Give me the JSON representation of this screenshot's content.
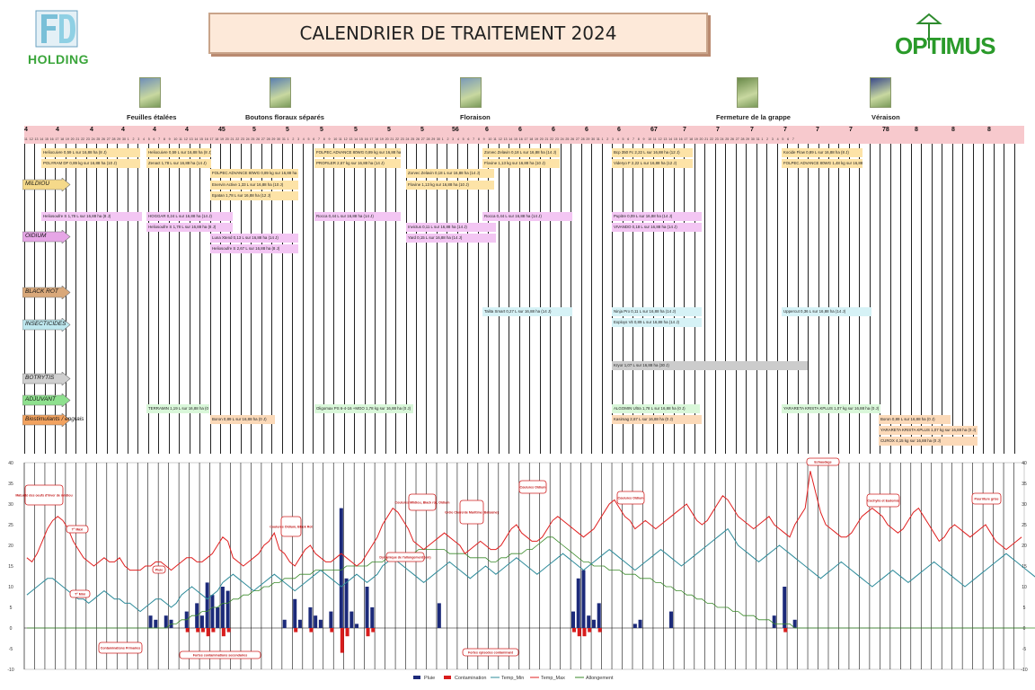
{
  "header": {
    "logo_left_text": "HOLDING",
    "title": "CALENDRIER DE TRAITEMENT 2024",
    "logo_right_text": "OPTIMUS"
  },
  "stages": [
    {
      "label": "Feuilles étalées"
    },
    {
      "label": "Boutons floraux séparés"
    },
    {
      "label": "Floraison"
    },
    {
      "label": "Fermeture de la grappe"
    },
    {
      "label": "Véraison"
    }
  ],
  "month_labels": [
    "4",
    "4",
    "4",
    "4",
    "4",
    "4",
    "45",
    "5",
    "5",
    "5",
    "5",
    "5",
    "5",
    "56",
    "6",
    "6",
    "6",
    "6",
    "6",
    "67",
    "7",
    "7",
    "7",
    "7",
    "7",
    "7",
    "78",
    "8",
    "8",
    "8",
    "8",
    "8",
    "89",
    "9"
  ],
  "day_labels": [
    "11",
    "12",
    "13",
    "14",
    "15",
    "16",
    "17",
    "18",
    "19",
    "20",
    "21",
    "22",
    "23",
    "24",
    "25",
    "26",
    "27",
    "28",
    "29",
    "30",
    "1",
    "2",
    "3",
    "4",
    "5",
    "6",
    "7",
    "8",
    "9",
    "10",
    "11",
    "12",
    "13",
    "14",
    "15",
    "16",
    "17",
    "18",
    "19",
    "20",
    "21",
    "22",
    "23",
    "24",
    "25",
    "26",
    "27",
    "28",
    "29",
    "30",
    "31",
    "1",
    "2",
    "3",
    "4",
    "5",
    "6",
    "7",
    "8",
    "9",
    "10",
    "11",
    "12",
    "13",
    "14",
    "15",
    "16",
    "17",
    "18",
    "19",
    "20",
    "21",
    "22",
    "23",
    "24",
    "25",
    "26",
    "27",
    "28",
    "29",
    "30",
    "1",
    "2",
    "3",
    "4",
    "5",
    "6",
    "7",
    "8",
    "9",
    "10",
    "11",
    "12",
    "13",
    "14",
    "15",
    "16",
    "17",
    "18",
    "19",
    "20",
    "21",
    "22",
    "23",
    "24",
    "25",
    "26",
    "27",
    "28",
    "29",
    "30",
    "31",
    "1",
    "2",
    "3",
    "4",
    "5",
    "6",
    "7",
    "8",
    "9",
    "10",
    "11",
    "12",
    "13",
    "14",
    "15",
    "16",
    "17",
    "18",
    "19",
    "20",
    "21",
    "22",
    "23",
    "24",
    "25",
    "26",
    "27",
    "28",
    "29",
    "30",
    "31",
    "1",
    "2",
    "3",
    "4",
    "5",
    "6",
    "7"
  ],
  "categories": [
    {
      "name": "MILDIOU",
      "color": "#f5d98a"
    },
    {
      "name": "OIDIUM",
      "color": "#e6a6e6"
    },
    {
      "name": "BLACK ROT",
      "color": "#d9a87a"
    },
    {
      "name": "INSECTICIDES",
      "color": "#bfe8ef"
    },
    {
      "name": "BOTRYTIS",
      "color": "#cfcfcf"
    },
    {
      "name": "ADJUVANT",
      "color": "#8ee08e"
    },
    {
      "name": "Biostimulants / engrais",
      "color": "#f2a25f"
    }
  ],
  "treatments": {
    "mildiou": [
      "Heliocuivre 0,59 L sur 16,88 ha (8 J)",
      "POLYRAM DF 0,89 kg sur 16,88 ha (10 J)",
      "Heliocuivre 0,59 L sur 16,88 ha (8 J)",
      "Zenact 1,78 L sur 16,88 ha (14 J)",
      "FOLPEC ADVANCE 80WG 0,89 kg sur 16,88 ha (10 J)",
      "Enervin Active 1,33 L sur 16,88 ha (10 J)",
      "Epatan 1,78 L sur 16,88 ha (12 J)",
      "FOLPEC ADVANCE 80WG 0,89 kg sur 16,88 ha (10 J)",
      "PROFILER 2,67 kg sur 16,88 ha (14 J)",
      "Zorvec Zelavin 0,18 L sur 16,88 ha (14 J)",
      "Flovine 1,13 kg sur 16,88 ha (10 J)",
      "Zorvec Zelavin 0,18 L sur 16,88 ha (14 J)",
      "Flovine 1,13 kg sur 16,88 ha (10 J)",
      "Bcp 350 Fc 2,22 L sur 16,88 ha (12 J)",
      "Videryo F 2,22 L sur 16,88 ha (12 J)",
      "Kocide Flow 0,89 L sur 16,88 ha (8 J)",
      "FOLPEC ADVANCE 80WG 1,48 kg sur 16,88 ha (10 J)"
    ],
    "oidium": [
      "Heliosoufre S 1,78 L sur 16,88 ha (8 J)",
      "HOGGAR 0,24 L sur 16,88 ha (14 J)",
      "Heliosoufre S 1,78 L sur 16,88 ha (8 J)",
      "Luna Xtend 0,13 L sur 16,88 ha (14 J)",
      "Heliosoufre S 2,67 L sur 16,88 ha (8 J)",
      "Rocca 0,44 L sur 16,88 ha (14 J)",
      "Invictus 0,11 L sur 16,88 ha (14 J)",
      "Yard 0,15 L sur 16,88 ha (14 J)",
      "Rocca 0,44 L sur 16,88 ha (14 J)",
      "Pupitre 0,09 L sur 16,88 ha (14 J)",
      "VIVANDO 0,18 L sur 16,88 ha (14 J)"
    ],
    "insecticides": [
      "Talita Smart 0,27 L sur 16,88 ha (14 J)",
      "Ninja Pro 0,11 L sur 16,88 ha (14 J)",
      "Exploys Vit 0,89 L sur 16,88 ha (14 J)",
      "Uppercut 0,36 L sur 16,88 ha (14 J)"
    ],
    "botrytis": [
      "Kryor 1,07 L sur 16,88 ha (30 J)"
    ],
    "adjuvant": [
      "TERRAMIN 1,19 L sur 16,88 ha (0 J)",
      "Oligomax PS 6-4-16 +MGO 1,78 kg sur 16,88 ha (0 J)",
      "ALGOMIN Ultra 1,78 L sur 16,88 ha (0 J)",
      "YARARETA KRISTA KPLUS 1,07 kg sur 16,88 ha (0 J)"
    ],
    "bio": [
      "Boron 0,89 L sur 16,88 ha (0 J)",
      "Kasimag 2,67 L sur 16,88 ha (0 J)",
      "Boron 0,89 L sur 16,88 ha (0 J)",
      "YARARETA KRISTA KPLUS 1,07 kg sur 16,88 ha (0 J)",
      "CUROX 4,15 kg sur 16,88 ha (0 J)"
    ]
  },
  "annotations": [
    "Maturité des oeufs d'hiver de mildiou",
    "T° Maxi",
    "T° Mini",
    "Pluie",
    "Contaminations Primaires",
    "Fortes contaminations secondaires",
    "Coulures Oïdium, Black Rot",
    "Dynamique de l'allongement (cm)",
    "Coulures Mildiou, Black rot, Oïdium",
    "Grêle Charente Maritime (Balsaine)",
    "Fortes épisodes contaminant",
    "Coulures Oïdium",
    "Coulures Oïdium",
    "Echaudage",
    "Cochylis et Eudemis",
    "Pourriture grise"
  ],
  "chart_data": {
    "type": "line",
    "ylim": [
      -10,
      40
    ],
    "yticks": [
      "40",
      "35",
      "30",
      "25",
      "20",
      "15",
      "10",
      "5",
      "0",
      "-5",
      "-10"
    ],
    "legend": [
      "Pluie",
      "Contamination",
      "Temp_Min",
      "Temp_Max",
      "Allongement"
    ],
    "legend_position": "bottom",
    "colors": {
      "Pluie": "#1c2a7a",
      "Contamination": "#d81c1c",
      "Temp_Min": "#2e8b9a",
      "Temp_Max": "#e02020",
      "Allongement": "#3a8a2a"
    },
    "temp_max": [
      17,
      16,
      18,
      21,
      24,
      26,
      27,
      26,
      24,
      21,
      19,
      17,
      16,
      15,
      16,
      17,
      16,
      16,
      17,
      15,
      14,
      14,
      14,
      15,
      15,
      16,
      16,
      15,
      14,
      15,
      16,
      17,
      17,
      16,
      16,
      17,
      18,
      20,
      22,
      21,
      17,
      16,
      15,
      16,
      17,
      18,
      20,
      21,
      23,
      19,
      18,
      16,
      15,
      17,
      19,
      20,
      18,
      17,
      16,
      16,
      17,
      18,
      17,
      16,
      15,
      16,
      18,
      20,
      22,
      25,
      27,
      29,
      28,
      26,
      24,
      21,
      20,
      19,
      20,
      21,
      22,
      23,
      22,
      21,
      20,
      18,
      19,
      20,
      21,
      20,
      19,
      19,
      20,
      22,
      24,
      25,
      23,
      22,
      21,
      21,
      22,
      24,
      26,
      27,
      26,
      25,
      24,
      23,
      22,
      23,
      24,
      26,
      28,
      30,
      31,
      29,
      27,
      26,
      24,
      25,
      26,
      25,
      24,
      25,
      26,
      27,
      28,
      29,
      30,
      28,
      26,
      25,
      26,
      28,
      30,
      32,
      31,
      29,
      27,
      26,
      25,
      24,
      25,
      26,
      27,
      25,
      24,
      23,
      22,
      25,
      27,
      29,
      38,
      33,
      28,
      25,
      24,
      23,
      22,
      22,
      23,
      25,
      27,
      28,
      29,
      28,
      27,
      25,
      24,
      23,
      24,
      26,
      28,
      29,
      27,
      25,
      23,
      21,
      22,
      24,
      25,
      24,
      23,
      22,
      23,
      24,
      25,
      23,
      21,
      20,
      19,
      20,
      21,
      22
    ],
    "temp_min": [
      8,
      9,
      10,
      11,
      12,
      12,
      11,
      10,
      9,
      8,
      7,
      7,
      6,
      7,
      8,
      9,
      8,
      7,
      7,
      6,
      6,
      5,
      4,
      5,
      6,
      7,
      7,
      6,
      5,
      6,
      8,
      9,
      10,
      9,
      8,
      7,
      8,
      9,
      11,
      12,
      13,
      12,
      11,
      10,
      9,
      10,
      11,
      12,
      13,
      12,
      11,
      10,
      9,
      10,
      11,
      12,
      13,
      14,
      13,
      12,
      11,
      10,
      11,
      12,
      13,
      12,
      11,
      12,
      13,
      15,
      16,
      17,
      16,
      15,
      14,
      13,
      12,
      11,
      12,
      13,
      14,
      15,
      16,
      15,
      14,
      13,
      12,
      13,
      14,
      15,
      14,
      13,
      14,
      15,
      16,
      17,
      16,
      15,
      14,
      13,
      14,
      15,
      16,
      17,
      18,
      17,
      16,
      15,
      14,
      15,
      16,
      17,
      18,
      19,
      18,
      17,
      16,
      15,
      14,
      15,
      16,
      17,
      18,
      19,
      18,
      17,
      16,
      15,
      16,
      17,
      18,
      19,
      20,
      21,
      22,
      23,
      24,
      22,
      20,
      19,
      18,
      17,
      16,
      17,
      18,
      19,
      20,
      19,
      18,
      17,
      16,
      15,
      14,
      13,
      12,
      13,
      14,
      15,
      16,
      15,
      14,
      13,
      12,
      11,
      10,
      11,
      12,
      13,
      14,
      13,
      12,
      11,
      12,
      13,
      14,
      15,
      16,
      15,
      14,
      13,
      12,
      11,
      10,
      11,
      12,
      13,
      14,
      15,
      16,
      17,
      18,
      17,
      16,
      15,
      14,
      13,
      12,
      13,
      14
    ],
    "allongement": [
      0,
      0,
      0,
      0,
      0,
      0,
      0,
      0,
      0,
      0,
      0,
      0,
      0,
      0,
      0,
      0,
      0,
      0,
      0,
      0,
      0,
      0,
      0,
      0,
      0,
      0,
      0,
      0,
      1,
      1,
      2,
      2,
      3,
      3,
      4,
      4,
      5,
      5,
      6,
      6,
      7,
      7,
      8,
      8,
      9,
      9,
      10,
      10,
      11,
      11,
      12,
      12,
      12,
      13,
      13,
      13,
      14,
      14,
      14,
      14,
      14,
      14,
      15,
      15,
      15,
      15,
      15,
      16,
      16,
      16,
      17,
      17,
      17,
      18,
      18,
      18,
      19,
      19,
      19,
      19,
      19,
      19,
      18,
      18,
      18,
      18,
      17,
      17,
      17,
      17,
      16,
      16,
      17,
      17,
      18,
      18,
      18,
      19,
      19,
      20,
      21,
      22,
      22,
      21,
      20,
      19,
      18,
      17,
      16,
      16,
      15,
      15,
      15,
      14,
      14,
      14,
      13,
      13,
      13,
      12,
      12,
      12,
      11,
      11,
      10,
      10,
      9,
      9,
      8,
      8,
      7,
      7,
      6,
      6,
      5,
      5,
      5,
      4,
      4,
      3,
      3,
      3,
      2,
      2,
      2,
      1,
      1,
      1,
      1,
      0,
      0,
      0,
      0,
      0,
      0,
      0,
      0,
      0,
      0,
      0,
      0,
      0,
      0,
      0,
      0,
      0,
      0,
      0,
      0,
      0,
      0,
      0,
      0,
      0,
      0,
      0,
      0,
      0,
      0,
      0,
      0,
      0,
      0,
      0,
      0,
      0,
      0,
      0,
      0,
      0,
      0,
      0,
      0,
      0,
      0,
      0,
      0,
      0,
      0,
      0
    ],
    "pluie": [
      0,
      0,
      0,
      0,
      0,
      0,
      0,
      0,
      0,
      0,
      0,
      0,
      0,
      0,
      0,
      0,
      0,
      0,
      0,
      0,
      0,
      0,
      0,
      0,
      3,
      2,
      0,
      3,
      2,
      0,
      0,
      4,
      0,
      6,
      3,
      11,
      8,
      5,
      10,
      9,
      0,
      0,
      0,
      0,
      0,
      0,
      0,
      0,
      0,
      0,
      2,
      0,
      7,
      2,
      0,
      5,
      3,
      2,
      0,
      4,
      0,
      29,
      12,
      4,
      1,
      0,
      10,
      5,
      0,
      0,
      0,
      0,
      0,
      0,
      0,
      0,
      0,
      0,
      0,
      0,
      6,
      0,
      0,
      0,
      0,
      0,
      0,
      0,
      0,
      0,
      0,
      0,
      0,
      0,
      0,
      0,
      0,
      0,
      0,
      0,
      0,
      0,
      0,
      0,
      0,
      0,
      4,
      12,
      14,
      3,
      2,
      6,
      0,
      0,
      0,
      0,
      0,
      0,
      1,
      2,
      0,
      0,
      0,
      0,
      0,
      4,
      0,
      0,
      0,
      0,
      0,
      0,
      0,
      0,
      0,
      0,
      0,
      0,
      0,
      0,
      0,
      0,
      0,
      0,
      0,
      3,
      0,
      10,
      0,
      2,
      0,
      0,
      0,
      0,
      0,
      0,
      0,
      0,
      0,
      0,
      0,
      0,
      0,
      0,
      0,
      0,
      0,
      0,
      0,
      0,
      0,
      0,
      0,
      0,
      0,
      0,
      0,
      0,
      0,
      0,
      0,
      0,
      0,
      0,
      0,
      0,
      0,
      0,
      0,
      0,
      0,
      0,
      0,
      0,
      0,
      0,
      0,
      0,
      0,
      0
    ],
    "contamination": [
      0,
      0,
      0,
      0,
      0,
      0,
      0,
      0,
      0,
      0,
      0,
      0,
      0,
      0,
      0,
      0,
      0,
      0,
      0,
      0,
      0,
      0,
      0,
      0,
      0,
      0,
      0,
      0,
      0,
      0,
      0,
      -1,
      0,
      -1,
      -1,
      -2,
      -1,
      0,
      -2,
      -1,
      0,
      0,
      0,
      0,
      0,
      0,
      0,
      0,
      0,
      0,
      0,
      0,
      -1,
      0,
      0,
      -1,
      0,
      0,
      0,
      -1,
      0,
      -6,
      -2,
      0,
      0,
      0,
      -2,
      -1,
      0,
      0,
      0,
      0,
      0,
      0,
      0,
      0,
      0,
      0,
      0,
      0,
      0,
      0,
      0,
      0,
      0,
      0,
      0,
      0,
      0,
      0,
      0,
      0,
      0,
      0,
      0,
      0,
      0,
      0,
      0,
      0,
      0,
      0,
      0,
      0,
      0,
      0,
      -1,
      -2,
      -2,
      -1,
      0,
      -1,
      0,
      0,
      0,
      0,
      0,
      0,
      0,
      0,
      0,
      0,
      0,
      0,
      0,
      0,
      0,
      0,
      0,
      0,
      0,
      0,
      0,
      0,
      0,
      0,
      0,
      0,
      0,
      0,
      0,
      0,
      0,
      0,
      0,
      0,
      0,
      -1,
      0,
      0,
      0,
      0,
      0,
      0,
      0,
      0,
      0,
      0,
      0,
      0,
      0,
      0,
      0,
      0,
      0,
      0,
      0,
      0,
      0,
      0,
      0,
      0,
      0,
      0,
      0,
      0,
      0,
      0,
      0,
      0,
      0,
      0,
      0,
      0,
      0,
      0,
      0,
      0,
      0,
      0,
      0,
      0,
      0,
      0,
      0,
      0,
      0,
      0,
      0,
      0,
      0
    ]
  }
}
